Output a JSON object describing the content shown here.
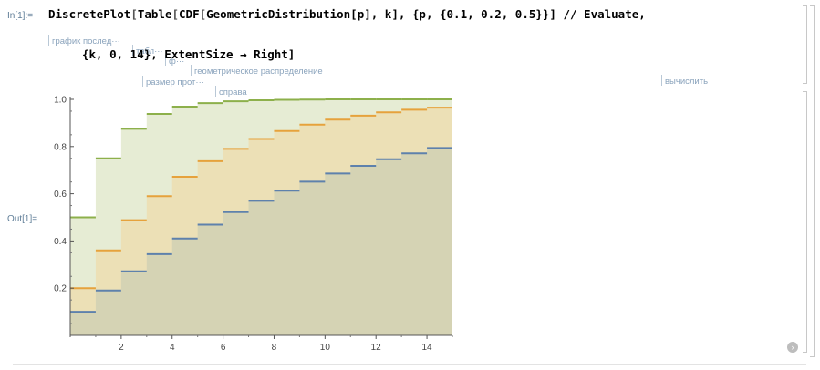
{
  "cell": {
    "in_label": "In[1]:=",
    "out_label": "Out[1]=",
    "line1": {
      "fn": "DiscretePlot",
      "open1": "[",
      "fn2": "Table",
      "open2": "[",
      "fn3": "CDF",
      "open3": "[",
      "fn4": "GeometricDistribution",
      "arg": "[p], k], {p, {0.1, 0.2, 0.5}}] // Evaluate,"
    },
    "line2": "{k, 0, 14}, ExtentSize → Right]",
    "hints1": [
      "график послед···",
      "табл···",
      "ф···",
      "геометрическое распределение",
      "вычислить"
    ],
    "hints2": [
      "размер прот···",
      "справа"
    ]
  },
  "colors": {
    "series_p01": "#5e81ac",
    "series_p02": "#e6a23c",
    "series_p05": "#8db04b",
    "fill_p01": "#d5d3b4",
    "fill_p02": "#ece0b6",
    "fill_p05": "#e6ecd4"
  },
  "chart_data": {
    "type": "area",
    "x": [
      0,
      1,
      2,
      3,
      4,
      5,
      6,
      7,
      8,
      9,
      10,
      11,
      12,
      13,
      14
    ],
    "xlim": [
      0,
      15
    ],
    "ylim": [
      0,
      1.0
    ],
    "x_ticks": [
      "2",
      "4",
      "6",
      "8",
      "10",
      "12",
      "14"
    ],
    "y_ticks": [
      "0.2",
      "0.4",
      "0.6",
      "0.8",
      "1.0"
    ],
    "series": [
      {
        "values": [
          0.1,
          0.19,
          0.271,
          0.344,
          0.41,
          0.469,
          0.522,
          0.57,
          0.613,
          0.651,
          0.686,
          0.718,
          0.746,
          0.771,
          0.794
        ]
      },
      {
        "values": [
          0.2,
          0.36,
          0.488,
          0.59,
          0.672,
          0.738,
          0.79,
          0.832,
          0.866,
          0.893,
          0.914,
          0.931,
          0.945,
          0.956,
          0.965
        ]
      },
      {
        "values": [
          0.5,
          0.75,
          0.875,
          0.938,
          0.969,
          0.984,
          0.992,
          0.996,
          0.998,
          0.999,
          1.0,
          1.0,
          1.0,
          1.0,
          1.0
        ]
      }
    ]
  }
}
